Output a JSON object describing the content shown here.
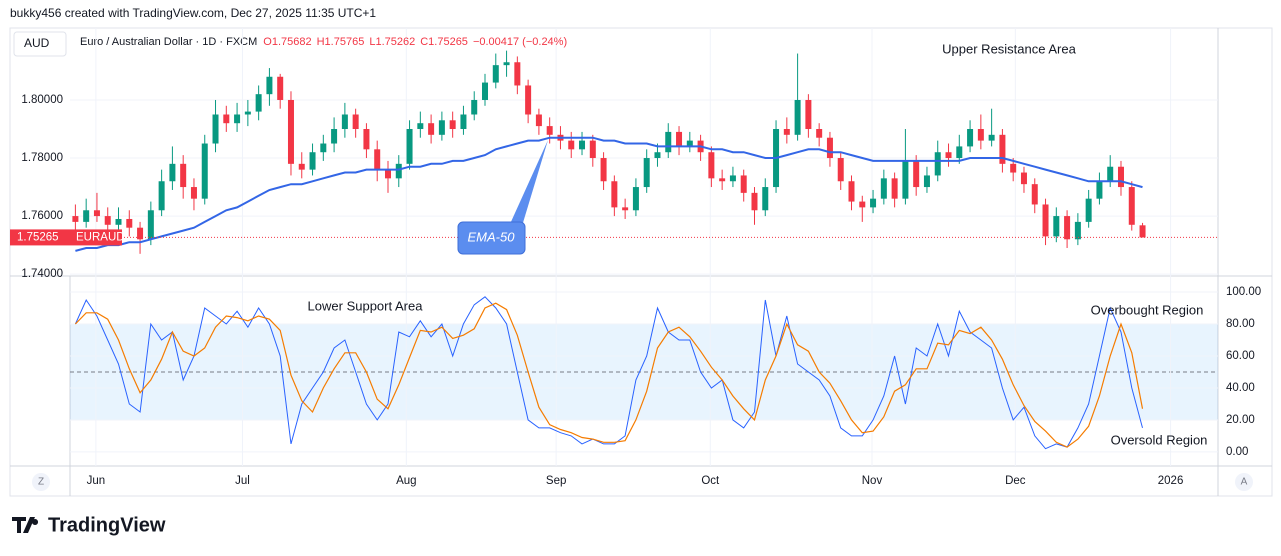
{
  "chart_data": {
    "type": "candlestick",
    "attribution": "bukky456 created with TradingView.com, Dec 27, 2025 11:35 UTC+1",
    "currency": "AUD",
    "title": "Euro / Australian Dollar · 1D · FXCM",
    "header_values": [
      "O1.75682",
      "H1.75765",
      "L1.75262",
      "C1.75265",
      "−0.00417 (−0.24%)"
    ],
    "ticker": "EURAUD",
    "up_color": "#089981",
    "down_color": "#f23645",
    "candles": [
      [
        1.76,
        1.764,
        1.755,
        1.758
      ],
      [
        1.758,
        1.766,
        1.756,
        1.762
      ],
      [
        1.762,
        1.768,
        1.758,
        1.76
      ],
      [
        1.76,
        1.763,
        1.754,
        1.757
      ],
      [
        1.757,
        1.763,
        1.755,
        1.759
      ],
      [
        1.759,
        1.762,
        1.753,
        1.756
      ],
      [
        1.756,
        1.758,
        1.747,
        1.752
      ],
      [
        1.752,
        1.765,
        1.75,
        1.762
      ],
      [
        1.762,
        1.776,
        1.76,
        1.772
      ],
      [
        1.772,
        1.784,
        1.769,
        1.778
      ],
      [
        1.778,
        1.781,
        1.766,
        1.77
      ],
      [
        1.77,
        1.773,
        1.762,
        1.766
      ],
      [
        1.766,
        1.788,
        1.764,
        1.785
      ],
      [
        1.785,
        1.8,
        1.782,
        1.795
      ],
      [
        1.795,
        1.798,
        1.789,
        1.792
      ],
      [
        1.792,
        1.799,
        1.789,
        1.795
      ],
      [
        1.795,
        1.8,
        1.791,
        1.796
      ],
      [
        1.796,
        1.805,
        1.793,
        1.802
      ],
      [
        1.802,
        1.811,
        1.798,
        1.808
      ],
      [
        1.808,
        1.809,
        1.797,
        1.8
      ],
      [
        1.8,
        1.803,
        1.774,
        1.778
      ],
      [
        1.778,
        1.782,
        1.773,
        1.776
      ],
      [
        1.776,
        1.785,
        1.774,
        1.782
      ],
      [
        1.782,
        1.788,
        1.779,
        1.785
      ],
      [
        1.785,
        1.794,
        1.782,
        1.79
      ],
      [
        1.79,
        1.799,
        1.787,
        1.795
      ],
      [
        1.795,
        1.797,
        1.787,
        1.79
      ],
      [
        1.79,
        1.792,
        1.78,
        1.783
      ],
      [
        1.783,
        1.786,
        1.772,
        1.776
      ],
      [
        1.776,
        1.779,
        1.768,
        1.773
      ],
      [
        1.773,
        1.781,
        1.77,
        1.778
      ],
      [
        1.778,
        1.793,
        1.776,
        1.79
      ],
      [
        1.79,
        1.796,
        1.787,
        1.792
      ],
      [
        1.792,
        1.795,
        1.785,
        1.788
      ],
      [
        1.788,
        1.796,
        1.786,
        1.793
      ],
      [
        1.793,
        1.796,
        1.787,
        1.79
      ],
      [
        1.79,
        1.798,
        1.788,
        1.795
      ],
      [
        1.795,
        1.803,
        1.793,
        1.8
      ],
      [
        1.8,
        1.809,
        1.798,
        1.806
      ],
      [
        1.806,
        1.816,
        1.804,
        1.812
      ],
      [
        1.812,
        1.817,
        1.808,
        1.813
      ],
      [
        1.813,
        1.815,
        1.802,
        1.805
      ],
      [
        1.805,
        1.807,
        1.792,
        1.795
      ],
      [
        1.795,
        1.797,
        1.788,
        1.791
      ],
      [
        1.791,
        1.794,
        1.785,
        1.788
      ],
      [
        1.788,
        1.791,
        1.783,
        1.786
      ],
      [
        1.786,
        1.789,
        1.78,
        1.783
      ],
      [
        1.783,
        1.789,
        1.781,
        1.786
      ],
      [
        1.786,
        1.788,
        1.777,
        1.78
      ],
      [
        1.78,
        1.782,
        1.769,
        1.772
      ],
      [
        1.772,
        1.774,
        1.76,
        1.763
      ],
      [
        1.763,
        1.766,
        1.759,
        1.762
      ],
      [
        1.762,
        1.773,
        1.76,
        1.77
      ],
      [
        1.77,
        1.783,
        1.768,
        1.78
      ],
      [
        1.78,
        1.785,
        1.777,
        1.782
      ],
      [
        1.782,
        1.792,
        1.78,
        1.789
      ],
      [
        1.789,
        1.791,
        1.781,
        1.784
      ],
      [
        1.784,
        1.789,
        1.782,
        1.786
      ],
      [
        1.786,
        1.788,
        1.779,
        1.782
      ],
      [
        1.782,
        1.784,
        1.77,
        1.773
      ],
      [
        1.773,
        1.776,
        1.769,
        1.772
      ],
      [
        1.772,
        1.777,
        1.77,
        1.774
      ],
      [
        1.774,
        1.776,
        1.765,
        1.768
      ],
      [
        1.768,
        1.77,
        1.757,
        1.762
      ],
      [
        1.762,
        1.773,
        1.76,
        1.77
      ],
      [
        1.77,
        1.793,
        1.768,
        1.79
      ],
      [
        1.79,
        1.794,
        1.785,
        1.788
      ],
      [
        1.788,
        1.816,
        1.786,
        1.8
      ],
      [
        1.8,
        1.802,
        1.787,
        1.79
      ],
      [
        1.79,
        1.792,
        1.784,
        1.787
      ],
      [
        1.787,
        1.789,
        1.777,
        1.78
      ],
      [
        1.78,
        1.782,
        1.769,
        1.772
      ],
      [
        1.772,
        1.774,
        1.762,
        1.765
      ],
      [
        1.765,
        1.767,
        1.758,
        1.763
      ],
      [
        1.763,
        1.769,
        1.761,
        1.766
      ],
      [
        1.766,
        1.776,
        1.764,
        1.773
      ],
      [
        1.773,
        1.775,
        1.763,
        1.766
      ],
      [
        1.766,
        1.79,
        1.764,
        1.779
      ],
      [
        1.779,
        1.781,
        1.767,
        1.77
      ],
      [
        1.77,
        1.777,
        1.768,
        1.774
      ],
      [
        1.774,
        1.786,
        1.772,
        1.782
      ],
      [
        1.782,
        1.785,
        1.777,
        1.78
      ],
      [
        1.78,
        1.788,
        1.778,
        1.784
      ],
      [
        1.784,
        1.793,
        1.782,
        1.79
      ],
      [
        1.79,
        1.795,
        1.783,
        1.786
      ],
      [
        1.786,
        1.797,
        1.784,
        1.788
      ],
      [
        1.788,
        1.79,
        1.775,
        1.778
      ],
      [
        1.778,
        1.78,
        1.772,
        1.775
      ],
      [
        1.775,
        1.777,
        1.768,
        1.771
      ],
      [
        1.771,
        1.773,
        1.761,
        1.764
      ],
      [
        1.764,
        1.766,
        1.75,
        1.753
      ],
      [
        1.753,
        1.763,
        1.751,
        1.76
      ],
      [
        1.76,
        1.762,
        1.749,
        1.752
      ],
      [
        1.752,
        1.761,
        1.75,
        1.758
      ],
      [
        1.758,
        1.769,
        1.756,
        1.766
      ],
      [
        1.766,
        1.775,
        1.764,
        1.772
      ],
      [
        1.772,
        1.781,
        1.77,
        1.777
      ],
      [
        1.777,
        1.779,
        1.767,
        1.77
      ],
      [
        1.77,
        1.772,
        1.755,
        1.757
      ],
      [
        1.75682,
        1.75765,
        1.75262,
        1.75265
      ]
    ],
    "ema": {
      "name": "EMA-50",
      "color": "#3366e6",
      "values": [
        1.748,
        1.749,
        1.749,
        1.75,
        1.75,
        1.751,
        1.751,
        1.752,
        1.753,
        1.754,
        1.755,
        1.756,
        1.758,
        1.76,
        1.762,
        1.763,
        1.765,
        1.767,
        1.769,
        1.77,
        1.771,
        1.771,
        1.772,
        1.773,
        1.774,
        1.775,
        1.775,
        1.776,
        1.776,
        1.776,
        1.776,
        1.777,
        1.777,
        1.778,
        1.778,
        1.779,
        1.779,
        1.78,
        1.781,
        1.783,
        1.784,
        1.785,
        1.786,
        1.786,
        1.787,
        1.787,
        1.787,
        1.787,
        1.787,
        1.786,
        1.786,
        1.785,
        1.785,
        1.785,
        1.784,
        1.784,
        1.784,
        1.784,
        1.784,
        1.783,
        1.783,
        1.782,
        1.782,
        1.781,
        1.78,
        1.78,
        1.781,
        1.782,
        1.783,
        1.783,
        1.782,
        1.782,
        1.781,
        1.78,
        1.779,
        1.779,
        1.779,
        1.779,
        1.779,
        1.779,
        1.779,
        1.779,
        1.779,
        1.78,
        1.78,
        1.78,
        1.78,
        1.779,
        1.778,
        1.777,
        1.776,
        1.775,
        1.774,
        1.773,
        1.772,
        1.772,
        1.772,
        1.772,
        1.771,
        1.77
      ]
    },
    "ylim": [
      1.7397,
      1.8248
    ],
    "yticks": [
      {
        "value": 1.8,
        "label": "1.80000"
      },
      {
        "value": 1.78,
        "label": "1.78000"
      },
      {
        "value": 1.76,
        "label": "1.76000"
      },
      {
        "value": 1.74,
        "label": "1.74000"
      }
    ],
    "xlim": [
      -0.5,
      106
    ],
    "xticks": [
      {
        "value": 1.9,
        "label": "Jun"
      },
      {
        "value": 15.5,
        "label": "Jul"
      },
      {
        "value": 30.7,
        "label": "Aug"
      },
      {
        "value": 44.6,
        "label": "Sep"
      },
      {
        "value": 58.9,
        "label": "Oct"
      },
      {
        "value": 73.9,
        "label": "Nov"
      },
      {
        "value": 87.2,
        "label": "Dec"
      },
      {
        "value": 101.6,
        "label": "2026"
      }
    ],
    "annotations": [
      "Upper Resistance Area",
      "Lower Support Area",
      "Overbought Region",
      "Oversold Region"
    ],
    "oscillator": {
      "k": {
        "color": "#2962ff",
        "values": [
          80,
          95,
          85,
          70,
          55,
          30,
          25,
          80,
          70,
          75,
          45,
          60,
          90,
          85,
          80,
          88,
          78,
          90,
          80,
          60,
          5,
          30,
          40,
          50,
          65,
          70,
          50,
          30,
          20,
          30,
          75,
          72,
          82,
          72,
          80,
          60,
          80,
          92,
          97,
          90,
          80,
          50,
          20,
          15,
          15,
          12,
          10,
          5,
          8,
          5,
          5,
          10,
          45,
          60,
          90,
          75,
          70,
          70,
          50,
          40,
          45,
          20,
          15,
          25,
          95,
          60,
          85,
          55,
          50,
          45,
          35,
          15,
          10,
          10,
          20,
          35,
          60,
          30,
          65,
          60,
          80,
          60,
          88,
          75,
          70,
          65,
          40,
          20,
          28,
          10,
          2,
          5,
          3,
          15,
          30,
          60,
          90,
          75,
          40,
          15
        ]
      },
      "d": {
        "color": "#f57c00",
        "values": [
          80,
          87,
          87,
          83,
          70,
          52,
          37,
          45,
          58,
          75,
          63,
          60,
          65,
          78,
          85,
          84,
          82,
          85,
          83,
          76,
          48,
          32,
          25,
          40,
          52,
          62,
          62,
          50,
          33,
          27,
          42,
          59,
          76,
          75,
          78,
          71,
          73,
          77,
          90,
          93,
          89,
          73,
          50,
          28,
          17,
          14,
          12,
          9,
          8,
          6,
          6,
          7,
          20,
          38,
          65,
          75,
          78,
          72,
          63,
          53,
          45,
          35,
          27,
          20,
          45,
          60,
          80,
          67,
          63,
          50,
          43,
          32,
          20,
          12,
          13,
          22,
          38,
          42,
          52,
          52,
          68,
          67,
          76,
          74,
          78,
          70,
          58,
          42,
          29,
          19,
          13,
          6,
          3,
          8,
          16,
          35,
          60,
          80,
          62,
          27
        ]
      },
      "ylim": [
        -8.8,
        109.4
      ],
      "yticks": [
        {
          "value": 100,
          "label": "100.00"
        },
        {
          "value": 80,
          "label": "80.00"
        },
        {
          "value": 60,
          "label": "60.00"
        },
        {
          "value": 40,
          "label": "40.00"
        },
        {
          "value": 20,
          "label": "20.00"
        },
        {
          "value": 0,
          "label": "0.00"
        }
      ],
      "levels": [
        80,
        50,
        20
      ]
    },
    "axis_buttons": [
      "Z",
      "A"
    ],
    "brand": "TradingView"
  }
}
